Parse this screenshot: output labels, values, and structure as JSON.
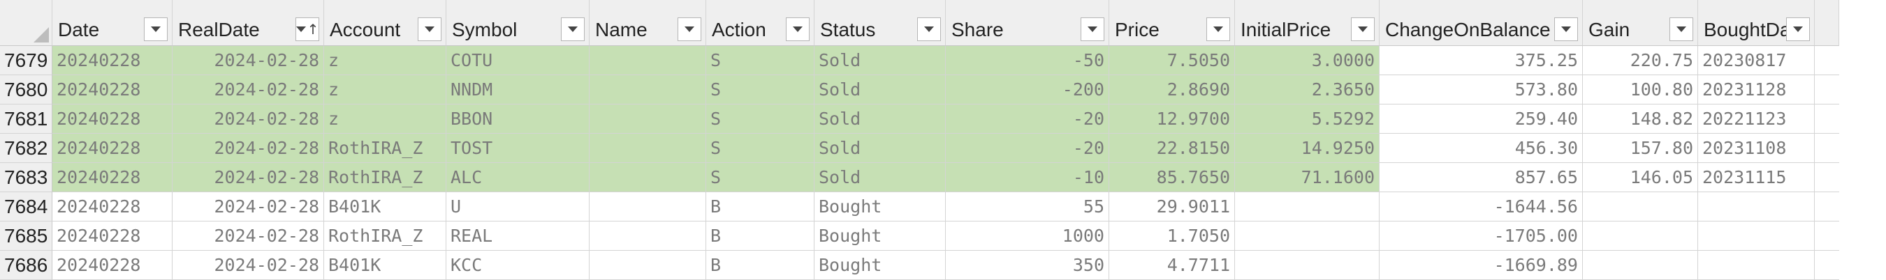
{
  "columns": [
    {
      "key": "Date",
      "label": "Date",
      "sort": ""
    },
    {
      "key": "RealDate",
      "label": "RealDate",
      "sort": "↑"
    },
    {
      "key": "Account",
      "label": "Account",
      "sort": ""
    },
    {
      "key": "Symbol",
      "label": "Symbol",
      "sort": ""
    },
    {
      "key": "Name",
      "label": "Name",
      "sort": ""
    },
    {
      "key": "Action",
      "label": "Action",
      "sort": ""
    },
    {
      "key": "Status",
      "label": "Status",
      "sort": ""
    },
    {
      "key": "Share",
      "label": "Share",
      "sort": ""
    },
    {
      "key": "Price",
      "label": "Price",
      "sort": ""
    },
    {
      "key": "InitialPrice",
      "label": "InitialPrice",
      "sort": ""
    },
    {
      "key": "ChangeOnBalance",
      "label": "ChangeOnBalance",
      "sort": ""
    },
    {
      "key": "Gain",
      "label": "Gain",
      "sort": ""
    },
    {
      "key": "BoughtDate",
      "label": "BoughtDate",
      "sort": ""
    }
  ],
  "numeric_columns": [
    "RealDate",
    "Share",
    "Price",
    "InitialPrice",
    "ChangeOnBalance",
    "Gain"
  ],
  "highlight_color": "#c6e0b4",
  "highlight_through": "InitialPrice",
  "rows": [
    {
      "row": "7679",
      "highlight": true,
      "cells": [
        "20240228",
        "2024-02-28",
        "z",
        "COTU",
        "",
        "S",
        "Sold",
        "-50",
        "7.5050",
        "3.0000",
        "375.25",
        "220.75",
        "20230817"
      ]
    },
    {
      "row": "7680",
      "highlight": true,
      "cells": [
        "20240228",
        "2024-02-28",
        "z",
        "NNDM",
        "",
        "S",
        "Sold",
        "-200",
        "2.8690",
        "2.3650",
        "573.80",
        "100.80",
        "20231128"
      ]
    },
    {
      "row": "7681",
      "highlight": true,
      "cells": [
        "20240228",
        "2024-02-28",
        "z",
        "BBON",
        "",
        "S",
        "Sold",
        "-20",
        "12.9700",
        "5.5292",
        "259.40",
        "148.82",
        "20221123"
      ]
    },
    {
      "row": "7682",
      "highlight": true,
      "cells": [
        "20240228",
        "2024-02-28",
        "RothIRA_Z",
        "TOST",
        "",
        "S",
        "Sold",
        "-20",
        "22.8150",
        "14.9250",
        "456.30",
        "157.80",
        "20231108"
      ]
    },
    {
      "row": "7683",
      "highlight": true,
      "cells": [
        "20240228",
        "2024-02-28",
        "RothIRA_Z",
        "ALC",
        "",
        "S",
        "Sold",
        "-10",
        "85.7650",
        "71.1600",
        "857.65",
        "146.05",
        "20231115"
      ]
    },
    {
      "row": "7684",
      "highlight": false,
      "cells": [
        "20240228",
        "2024-02-28",
        "B401K",
        "U",
        "",
        "B",
        "Bought",
        "55",
        "29.9011",
        "",
        "-1644.56",
        "",
        ""
      ]
    },
    {
      "row": "7685",
      "highlight": false,
      "cells": [
        "20240228",
        "2024-02-28",
        "RothIRA_Z",
        "REAL",
        "",
        "B",
        "Bought",
        "1000",
        "1.7050",
        "",
        "-1705.00",
        "",
        ""
      ]
    },
    {
      "row": "7686",
      "highlight": false,
      "cells": [
        "20240228",
        "2024-02-28",
        "B401K",
        "KCC",
        "",
        "B",
        "Bought",
        "350",
        "4.7711",
        "",
        "-1669.89",
        "",
        ""
      ]
    }
  ]
}
